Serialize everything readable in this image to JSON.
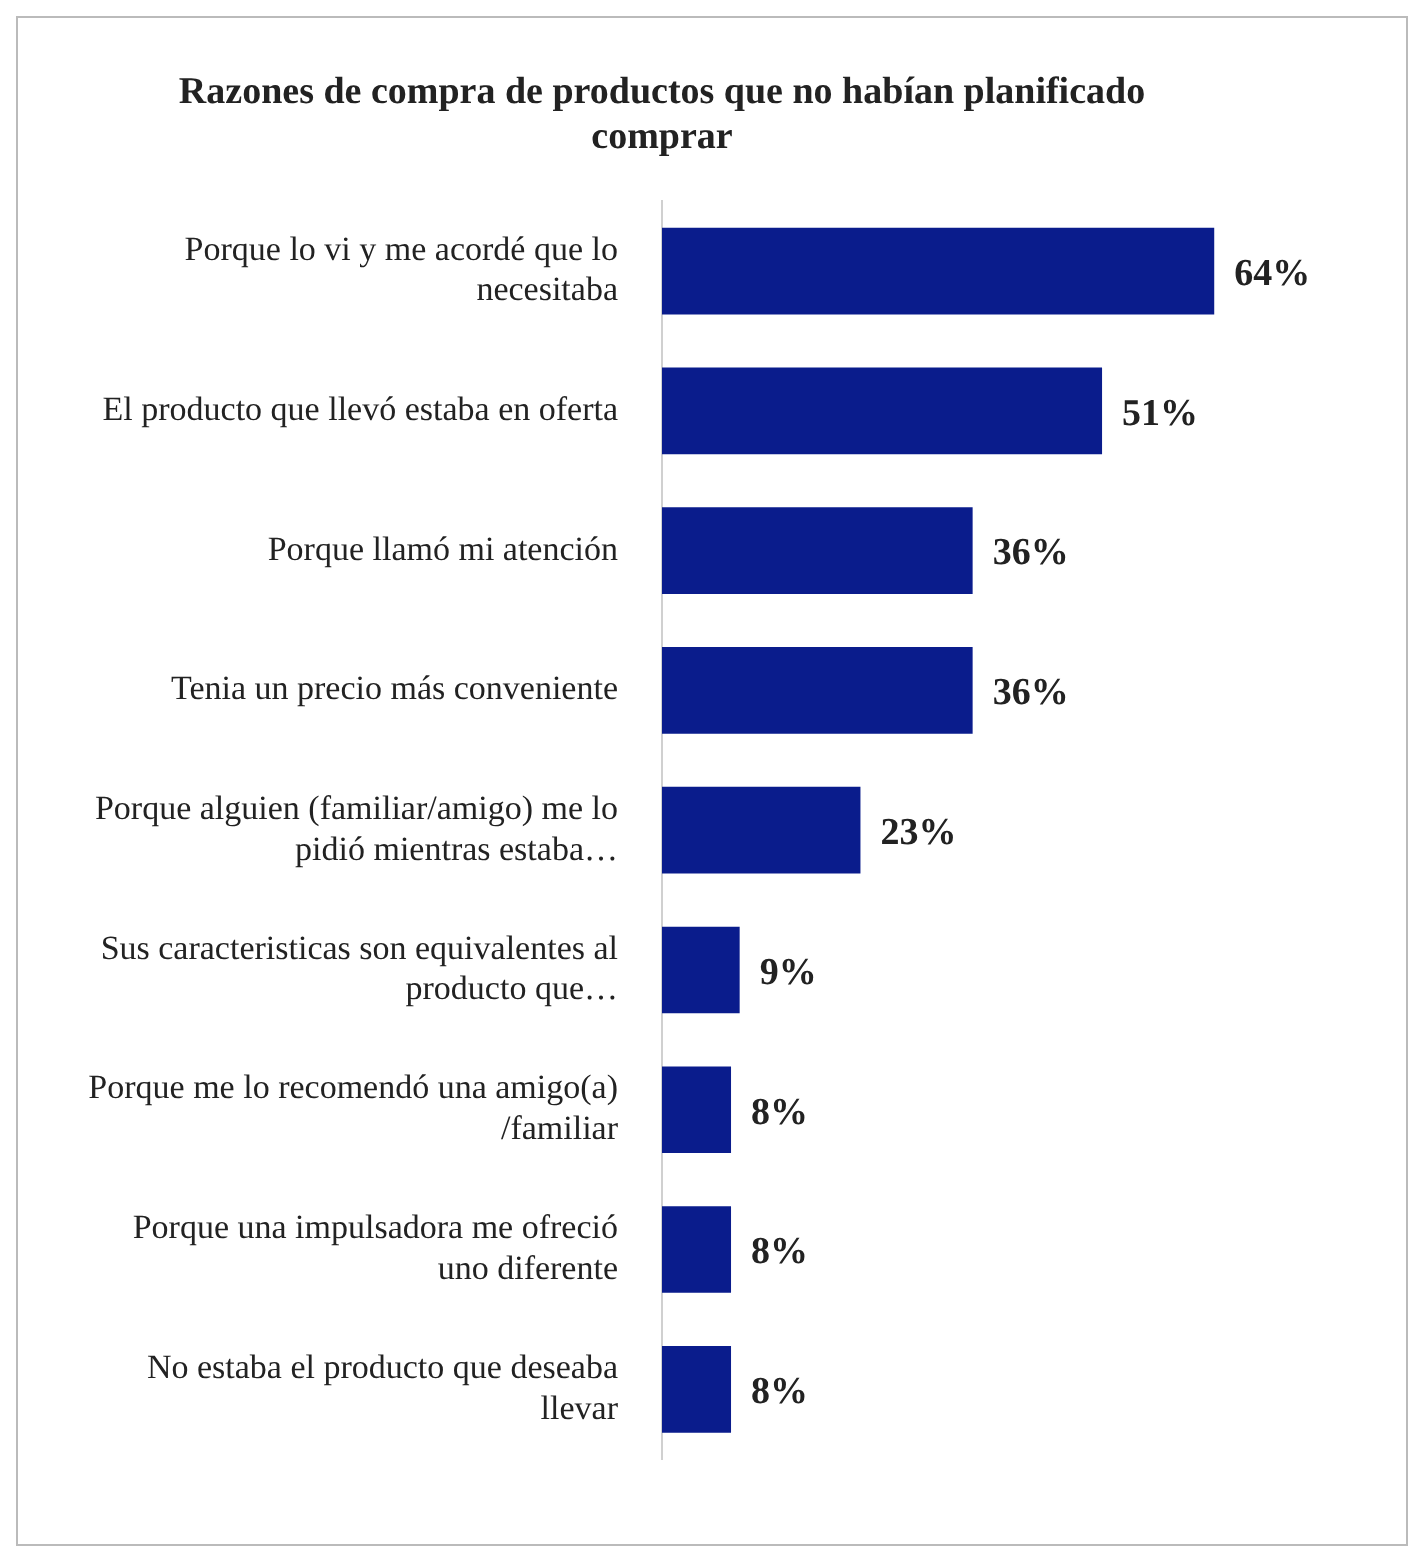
{
  "chart_data": {
    "type": "bar",
    "orientation": "horizontal",
    "title": "Razones de compra de productos que no habían planificado comprar",
    "categories": [
      "Porque lo vi y me acordé que lo necesitaba",
      "El producto que llevó estaba en oferta",
      "Porque llamó mi atención",
      "Tenia un precio más conveniente",
      "Porque alguien (familiar/amigo) me lo pidió mientras estaba…",
      "Sus caracteristicas son equivalentes al producto que…",
      "Porque me lo recomendó una amigo(a) /familiar",
      "Porque una impulsadora me ofreció uno diferente",
      "No estaba el producto que deseaba llevar"
    ],
    "values": [
      64,
      51,
      36,
      36,
      23,
      9,
      8,
      8,
      8
    ],
    "value_labels": [
      "64%",
      "51%",
      "36%",
      "36%",
      "23%",
      "9%",
      "8%",
      "8%",
      "8%"
    ],
    "color": "#0a1c8c",
    "tick_labels": "y",
    "grid": false,
    "legend": false
  }
}
